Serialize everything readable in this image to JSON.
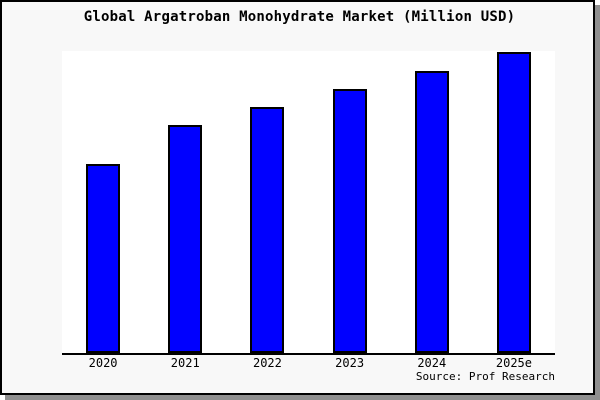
{
  "chart_data": {
    "type": "bar",
    "title": "Global Argatroban Monohydrate Market (Million USD)",
    "categories": [
      "2020",
      "2021",
      "2022",
      "2023",
      "2024",
      "2025e"
    ],
    "values": [
      62.8,
      75.7,
      81.7,
      87.7,
      93.7,
      100
    ],
    "value_scale": "relative height, % of tallest bar (no y-axis tick labels shown)",
    "xlabel": "",
    "ylabel": "",
    "ylim": [
      0,
      100
    ],
    "grid": false,
    "legend": false,
    "bar_color": "#0000ff",
    "bar_border_color": "#000000",
    "source_note": "Source: Prof Research"
  },
  "colors": {
    "margin_background": "#f8f8f8",
    "plot_background": "#ffffff",
    "frame_border": "#000000",
    "axis": "#000000",
    "shadow": "#8f8f8f",
    "text": "#000000"
  }
}
